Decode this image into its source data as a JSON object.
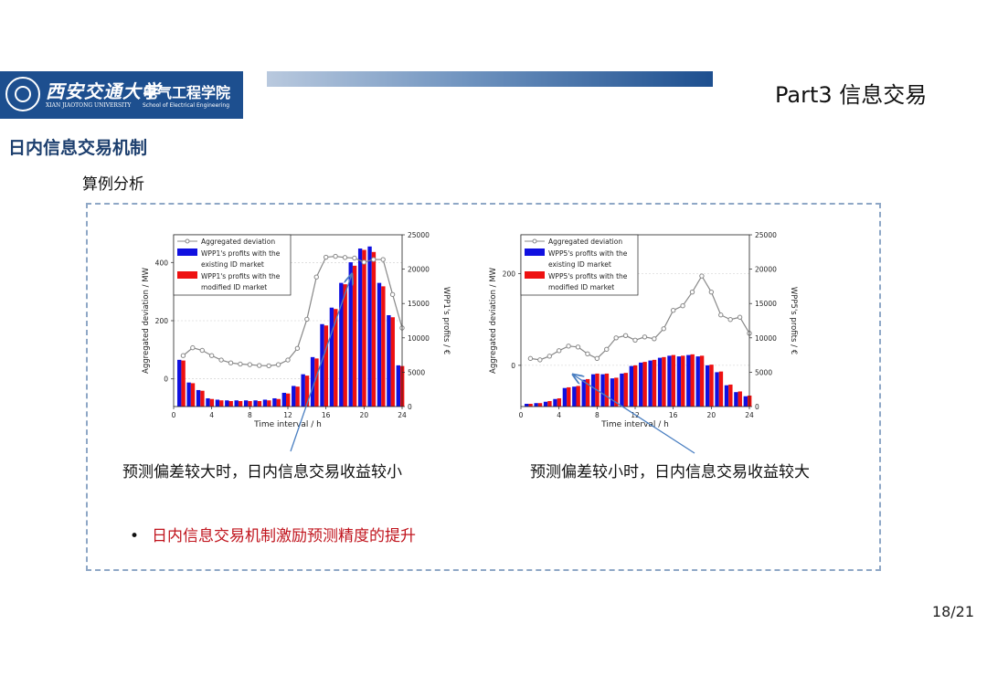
{
  "header": {
    "university_cn": "西安交通大学",
    "university_en": "XIAN JIAOTONG UNIVERSITY",
    "school_cn": "电气工程学院",
    "school_en": "School of Electrical Engineering",
    "part_title": "Part3 信息交易"
  },
  "section_title": "日内信息交易机制",
  "subtitle": "算例分析",
  "captions": {
    "left": "预测偏差较大时，日内信息交易收益较小",
    "right": "预测偏差较小时，日内信息交易收益较大"
  },
  "bullet": "日内信息交易机制激励预测精度的提升",
  "page_number": "18/21",
  "colors": {
    "existing": "#1010e0",
    "modified": "#ee1111",
    "deviation": "#888888",
    "accent": "#1d4f8f",
    "bullet": "#c0141d"
  },
  "chart_data": [
    {
      "type": "bar",
      "xlabel": "Time interval / h",
      "ylabel_left": "Aggregated deviation / MW",
      "ylabel_right": "WPP1's profits / €",
      "xlim": [
        0,
        24
      ],
      "xticks": [
        "0",
        "4",
        "8",
        "12",
        "16",
        "20",
        "24"
      ],
      "ylim_left": [
        -95,
        495
      ],
      "yticks_left": [
        "0",
        "200",
        "400"
      ],
      "ylim_right": [
        0,
        25000
      ],
      "yticks_right": [
        "0",
        "5000",
        "10000",
        "15000",
        "20000",
        "25000"
      ],
      "legend": {
        "position": "top-left",
        "entries": [
          "Aggregated deviation",
          "WPP1's profits with the",
          "existing ID market",
          "WPP1's profits with the",
          "modified ID market"
        ]
      },
      "x": [
        1,
        2,
        3,
        4,
        5,
        6,
        7,
        8,
        9,
        10,
        11,
        12,
        13,
        14,
        15,
        16,
        17,
        18,
        19,
        20,
        21,
        22,
        23,
        24
      ],
      "series": [
        {
          "name": "Aggregated deviation",
          "axis": "left",
          "kind": "line",
          "values": [
            80,
            107,
            98,
            80,
            65,
            55,
            51,
            49,
            46,
            45,
            49,
            65,
            105,
            205,
            350,
            418,
            421,
            417,
            415,
            401,
            410,
            410,
            290,
            175
          ]
        },
        {
          "name": "WPP1's profits with the existing ID market",
          "axis": "right",
          "kind": "bar",
          "values": [
            6800,
            3500,
            2400,
            1200,
            1000,
            900,
            900,
            900,
            900,
            1000,
            1200,
            2000,
            3000,
            4700,
            7200,
            12000,
            14400,
            18000,
            21000,
            23000,
            23300,
            18000,
            13300,
            6000
          ]
        },
        {
          "name": "WPP1's profits with the modified ID market",
          "axis": "right",
          "kind": "bar",
          "values": [
            6700,
            3400,
            2300,
            1100,
            900,
            800,
            800,
            800,
            800,
            900,
            1100,
            1900,
            2900,
            4500,
            7000,
            11800,
            14200,
            17800,
            20500,
            22800,
            22500,
            17500,
            13000,
            5900
          ]
        }
      ]
    },
    {
      "type": "bar",
      "xlabel": "Time interval / h",
      "ylabel_left": "Aggregated deviation / MW",
      "ylabel_right": "WPP5's profits / €",
      "xlim": [
        0,
        24
      ],
      "xticks": [
        "0",
        "4",
        "8",
        "12",
        "16",
        "20",
        "24"
      ],
      "ylim_left": [
        -90,
        285
      ],
      "yticks_left": [
        "0",
        "200"
      ],
      "ylim_right": [
        0,
        25000
      ],
      "yticks_right": [
        "0",
        "5000",
        "10000",
        "15000",
        "20000",
        "25000"
      ],
      "legend": {
        "position": "top-left",
        "entries": [
          "Aggregated deviation",
          "WPP5's profits with the",
          "existing ID market",
          "WPP5's profits with the",
          "modified ID market"
        ]
      },
      "x": [
        1,
        2,
        3,
        4,
        5,
        6,
        7,
        8,
        9,
        10,
        11,
        12,
        13,
        14,
        15,
        16,
        17,
        18,
        19,
        20,
        21,
        22,
        23,
        24
      ],
      "series": [
        {
          "name": "Aggregated deviation",
          "axis": "left",
          "kind": "line",
          "values": [
            15,
            12,
            20,
            32,
            42,
            40,
            25,
            15,
            35,
            60,
            65,
            55,
            62,
            58,
            80,
            120,
            130,
            160,
            195,
            160,
            110,
            100,
            105,
            70
          ]
        },
        {
          "name": "WPP5's profits with the existing ID market",
          "axis": "right",
          "kind": "bar",
          "values": [
            400,
            500,
            700,
            1100,
            2700,
            2900,
            3900,
            4700,
            4700,
            4100,
            4800,
            5900,
            6400,
            6700,
            7100,
            7400,
            7300,
            7500,
            7300,
            6000,
            5000,
            3100,
            2100,
            1500
          ]
        },
        {
          "name": "WPP5's profits with the modified ID market",
          "axis": "right",
          "kind": "bar",
          "values": [
            400,
            500,
            800,
            1200,
            2800,
            3000,
            4000,
            4800,
            4800,
            4200,
            4900,
            6000,
            6500,
            6800,
            7200,
            7500,
            7400,
            7600,
            7400,
            6100,
            5100,
            3200,
            2200,
            1600
          ]
        }
      ]
    }
  ]
}
